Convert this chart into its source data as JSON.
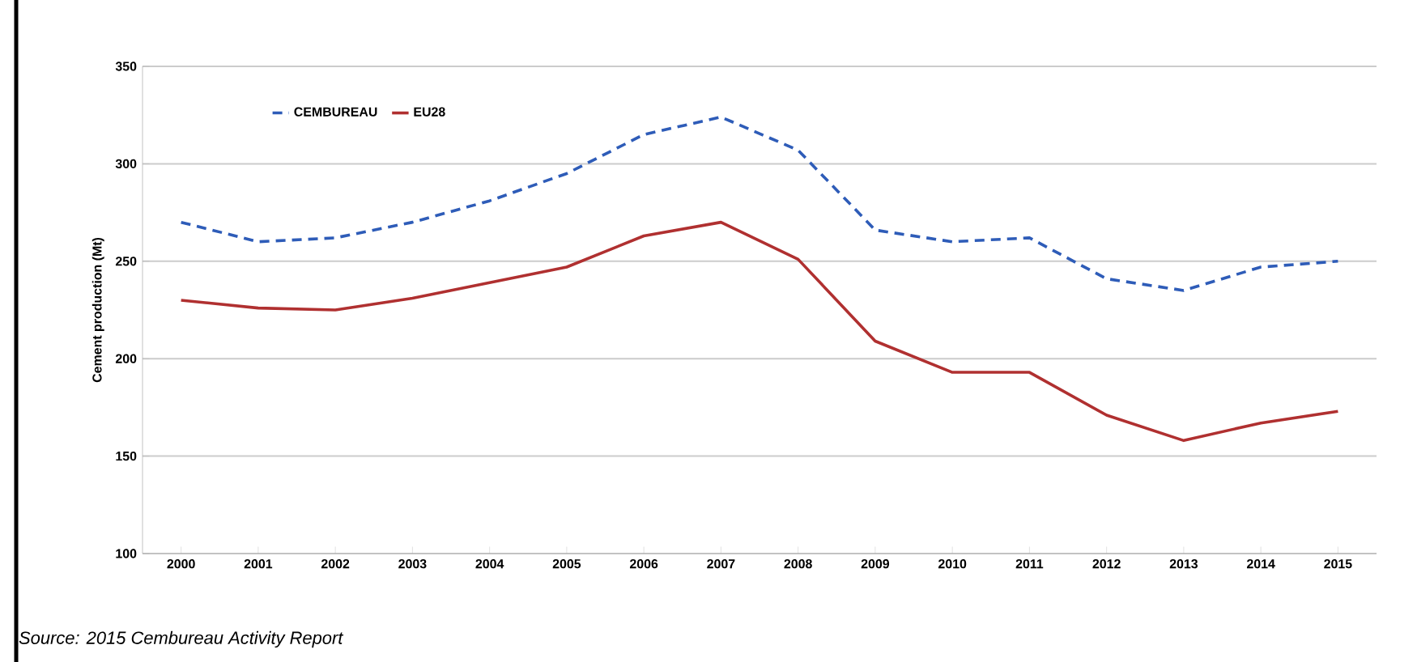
{
  "chart_data": {
    "type": "line",
    "ylabel": "Cement production (Mt)",
    "categories": [
      "2000",
      "2001",
      "2002",
      "2003",
      "2004",
      "2005",
      "2006",
      "2007",
      "2008",
      "2009",
      "2010",
      "2011",
      "2012",
      "2013",
      "2014",
      "2015"
    ],
    "series": [
      {
        "name": "CEMBUREAU",
        "color": "#2e5cb8",
        "line_style": "dashed",
        "values": [
          270,
          260,
          262,
          270,
          281,
          295,
          315,
          324,
          307,
          266,
          260,
          262,
          241,
          235,
          247,
          250
        ]
      },
      {
        "name": "EU28",
        "color": "#b03030",
        "line_style": "solid",
        "values": [
          230,
          226,
          225,
          231,
          239,
          247,
          263,
          270,
          251,
          209,
          193,
          193,
          171,
          158,
          167,
          173
        ]
      }
    ],
    "ylim": [
      100,
      350
    ],
    "yticks": [
      100,
      150,
      200,
      250,
      300,
      350
    ],
    "grid": "y",
    "legend": "top left",
    "marker": "none",
    "annotations": [
      "Source: 2015 Cembureau Activity Report"
    ]
  }
}
